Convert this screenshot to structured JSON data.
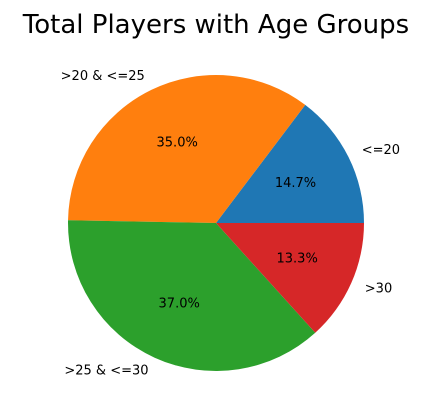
{
  "chart_data": {
    "type": "pie",
    "title": "Total Players with Age Groups",
    "labels": [
      "<=20",
      ">20 & <=25",
      ">25 & <=30",
      ">30"
    ],
    "values": [
      14.7,
      35.0,
      37.0,
      13.3
    ],
    "percent_labels": [
      "14.7%",
      "35.0%",
      "37.0%",
      "13.3%"
    ],
    "colors": [
      "#1f77b4",
      "#ff7f0e",
      "#2ca02c",
      "#d62728"
    ],
    "start_angle_deg": 0,
    "direction": "counterclockwise"
  }
}
